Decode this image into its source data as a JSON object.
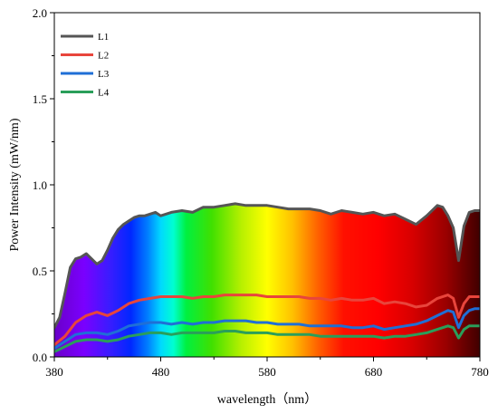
{
  "chart_data": {
    "type": "line",
    "title": "",
    "xlabel": "wavelength（nm）",
    "ylabel": "Power Intensity (mW/nm)",
    "xlim": [
      380,
      780
    ],
    "ylim": [
      0,
      2.0
    ],
    "xticks": [
      380,
      480,
      580,
      680,
      780
    ],
    "xtick_labels": [
      "380",
      "480",
      "580",
      "680",
      "780"
    ],
    "yticks": [
      0,
      0.5,
      1.0,
      1.5,
      2.0
    ],
    "ytick_labels": [
      "0.0",
      "0.5",
      "1.0",
      "1.5",
      "2.0"
    ],
    "grid": false,
    "legend_position": "top-left",
    "background": "visible-spectrum gradient filled beneath series L1",
    "series": [
      {
        "name": "L1",
        "color": "#555555",
        "x": [
          380,
          385,
          390,
          395,
          400,
          405,
          410,
          415,
          420,
          425,
          430,
          435,
          440,
          445,
          450,
          455,
          460,
          465,
          470,
          475,
          480,
          490,
          500,
          510,
          520,
          530,
          540,
          550,
          560,
          570,
          580,
          590,
          600,
          610,
          620,
          630,
          640,
          650,
          660,
          670,
          680,
          690,
          700,
          710,
          720,
          730,
          740,
          745,
          750,
          755,
          760,
          765,
          770,
          775,
          780
        ],
        "y": [
          0.17,
          0.23,
          0.37,
          0.52,
          0.57,
          0.58,
          0.6,
          0.57,
          0.54,
          0.56,
          0.62,
          0.69,
          0.74,
          0.77,
          0.79,
          0.81,
          0.82,
          0.82,
          0.83,
          0.84,
          0.82,
          0.84,
          0.85,
          0.84,
          0.87,
          0.87,
          0.88,
          0.89,
          0.88,
          0.88,
          0.88,
          0.87,
          0.86,
          0.86,
          0.86,
          0.85,
          0.83,
          0.85,
          0.84,
          0.83,
          0.84,
          0.82,
          0.83,
          0.8,
          0.77,
          0.82,
          0.88,
          0.87,
          0.82,
          0.75,
          0.56,
          0.76,
          0.84,
          0.85,
          0.85
        ]
      },
      {
        "name": "L2",
        "color": "#e8453c",
        "x": [
          380,
          390,
          400,
          410,
          420,
          430,
          440,
          450,
          460,
          470,
          480,
          490,
          500,
          510,
          520,
          530,
          540,
          550,
          560,
          570,
          580,
          590,
          600,
          610,
          620,
          630,
          640,
          650,
          660,
          670,
          680,
          690,
          700,
          710,
          720,
          730,
          740,
          750,
          755,
          760,
          765,
          770,
          775,
          780
        ],
        "y": [
          0.07,
          0.12,
          0.2,
          0.24,
          0.26,
          0.24,
          0.27,
          0.31,
          0.33,
          0.34,
          0.35,
          0.35,
          0.35,
          0.34,
          0.35,
          0.35,
          0.36,
          0.36,
          0.36,
          0.36,
          0.35,
          0.35,
          0.35,
          0.35,
          0.34,
          0.34,
          0.33,
          0.34,
          0.33,
          0.33,
          0.34,
          0.31,
          0.32,
          0.31,
          0.29,
          0.3,
          0.34,
          0.36,
          0.34,
          0.23,
          0.31,
          0.35,
          0.35,
          0.35
        ]
      },
      {
        "name": "L3",
        "color": "#1f6fd6",
        "x": [
          380,
          390,
          400,
          410,
          420,
          430,
          440,
          450,
          460,
          470,
          480,
          490,
          500,
          510,
          520,
          530,
          540,
          550,
          560,
          570,
          580,
          590,
          600,
          610,
          620,
          630,
          640,
          650,
          660,
          670,
          680,
          690,
          700,
          710,
          720,
          730,
          740,
          750,
          755,
          760,
          765,
          770,
          775,
          780
        ],
        "y": [
          0.05,
          0.09,
          0.13,
          0.14,
          0.14,
          0.13,
          0.15,
          0.18,
          0.19,
          0.2,
          0.2,
          0.19,
          0.2,
          0.19,
          0.2,
          0.2,
          0.21,
          0.21,
          0.21,
          0.2,
          0.2,
          0.19,
          0.19,
          0.19,
          0.18,
          0.18,
          0.18,
          0.18,
          0.17,
          0.17,
          0.18,
          0.16,
          0.17,
          0.18,
          0.19,
          0.21,
          0.24,
          0.27,
          0.26,
          0.17,
          0.24,
          0.27,
          0.28,
          0.28
        ]
      },
      {
        "name": "L4",
        "color": "#2a9e5a",
        "x": [
          380,
          390,
          400,
          410,
          420,
          430,
          440,
          450,
          460,
          470,
          480,
          490,
          500,
          510,
          520,
          530,
          540,
          550,
          560,
          570,
          580,
          590,
          600,
          610,
          620,
          630,
          640,
          650,
          660,
          670,
          680,
          690,
          700,
          710,
          720,
          730,
          740,
          750,
          755,
          760,
          765,
          770,
          775,
          780
        ],
        "y": [
          0.03,
          0.06,
          0.09,
          0.1,
          0.1,
          0.09,
          0.1,
          0.12,
          0.13,
          0.14,
          0.14,
          0.13,
          0.14,
          0.14,
          0.14,
          0.14,
          0.15,
          0.15,
          0.14,
          0.14,
          0.14,
          0.13,
          0.13,
          0.13,
          0.13,
          0.12,
          0.12,
          0.12,
          0.12,
          0.12,
          0.12,
          0.11,
          0.12,
          0.12,
          0.13,
          0.14,
          0.16,
          0.18,
          0.17,
          0.11,
          0.16,
          0.18,
          0.18,
          0.18
        ]
      }
    ]
  }
}
